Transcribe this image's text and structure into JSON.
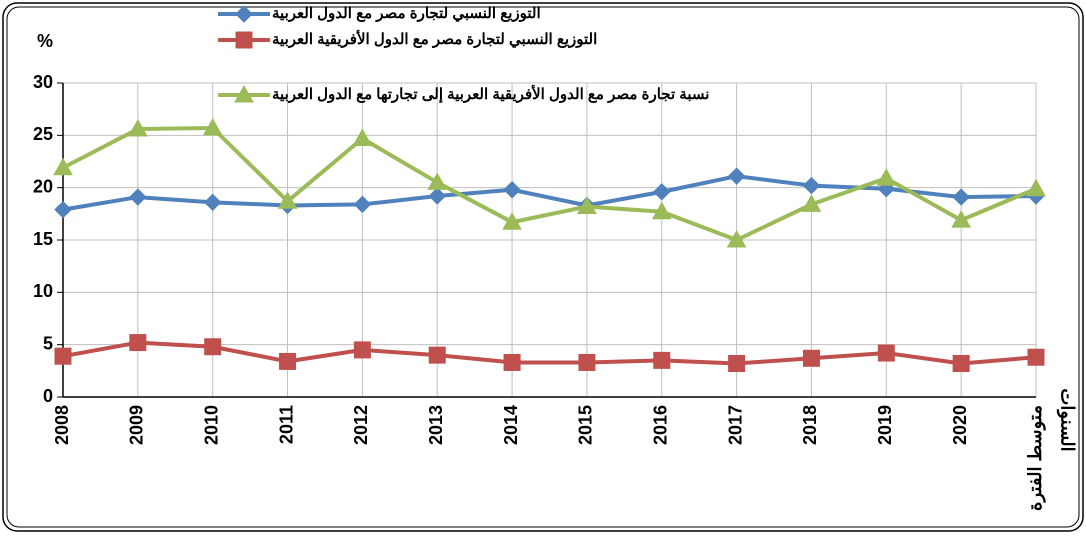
{
  "chart_data": {
    "type": "line",
    "y_label": "%",
    "x_label": "السنوات",
    "categories": [
      "2008",
      "2009",
      "2010",
      "2011",
      "2012",
      "2013",
      "2014",
      "2015",
      "2016",
      "2017",
      "2018",
      "2019",
      "2020",
      "متوسط الفترة"
    ],
    "series": [
      {
        "name": "التوزيع النسبي لتجارة مصر مع الدول العربية",
        "color": "#4f81bd",
        "marker": "diamond",
        "values": [
          17.9,
          19.1,
          18.6,
          18.3,
          18.4,
          19.2,
          19.8,
          18.3,
          19.6,
          21.1,
          20.2,
          19.9,
          19.1,
          19.2
        ]
      },
      {
        "name": "التوزيع النسبي لتجارة مصر مع الدول الأفريقية العربية",
        "color": "#c0504d",
        "marker": "square",
        "values": [
          3.9,
          5.2,
          4.8,
          3.4,
          4.5,
          4.0,
          3.3,
          3.3,
          3.5,
          3.2,
          3.7,
          4.2,
          3.2,
          3.8
        ]
      },
      {
        "name": "نسبة تجارة مصر مع الدول الأفريقية العربية إلى تجارتها مع  الدول العربية",
        "color": "#9bbb59",
        "marker": "triangle",
        "values": [
          21.9,
          25.6,
          25.7,
          18.7,
          24.7,
          20.5,
          16.7,
          18.2,
          17.7,
          15.0,
          18.4,
          20.9,
          16.9,
          19.9
        ]
      }
    ],
    "ylim": [
      0,
      30
    ],
    "yticks": [
      0,
      5,
      10,
      15,
      20,
      25,
      30
    ],
    "grid": true,
    "legend": "top"
  }
}
